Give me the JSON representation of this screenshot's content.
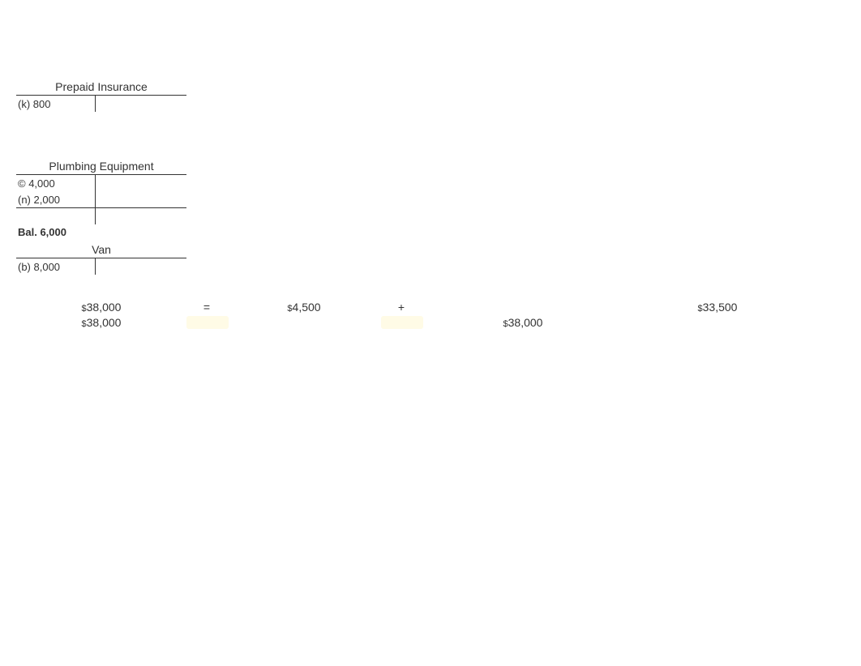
{
  "accounts": {
    "prepaid_insurance": {
      "title": "Prepaid Insurance",
      "row1_left": "(k) 800"
    },
    "plumbing_equipment": {
      "title": "Plumbing Equipment",
      "row1_left": "© 4,000",
      "row2_left": "(n) 2,000",
      "balance": "Bal. 6,000"
    },
    "van": {
      "title": "Van",
      "row1_left": "(b) 8,000"
    }
  },
  "equation": {
    "row1": {
      "assets": "$38,000",
      "eq": "=",
      "liabilities": "$4,500",
      "plus": "+",
      "equity": "$33,500"
    },
    "row2": {
      "left": "$38,000",
      "right": "$38,000"
    }
  },
  "fontsize": 14,
  "colors": {
    "text": "#333333",
    "background": "#ffffff",
    "highlight": "#fffbe6"
  }
}
